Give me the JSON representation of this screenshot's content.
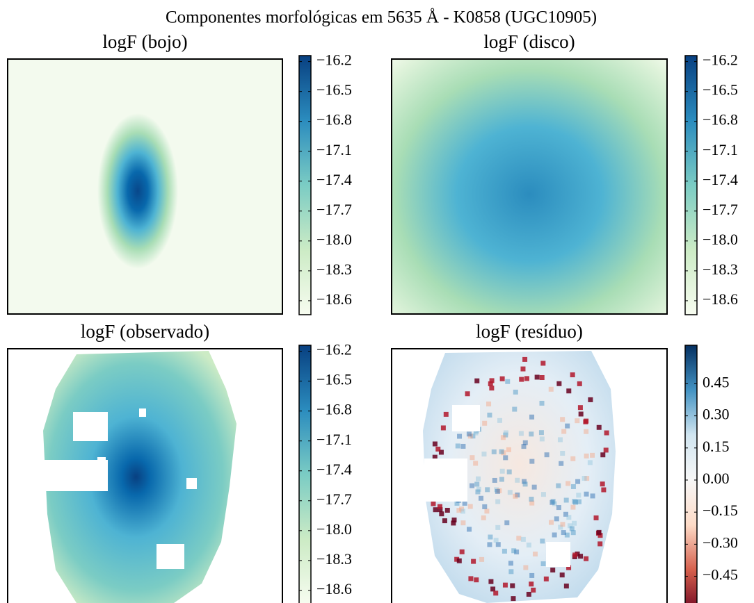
{
  "title": "Componentes morfológicas em 5635 Å - K0858 (UGC10905)",
  "chart_data": [
    {
      "type": "heatmap",
      "title": "logF (bojo)",
      "colormap": [
        "#f7fcf0",
        "#ccebc5",
        "#7bccc4",
        "#2b8cbe",
        "#084081"
      ],
      "clim": [
        -18.74,
        -16.14
      ],
      "ticks": [
        {
          "value": -16.2,
          "label": "−16.2"
        },
        {
          "value": -16.5,
          "label": "−16.5"
        },
        {
          "value": -16.8,
          "label": "−16.8"
        },
        {
          "value": -17.1,
          "label": "−17.1"
        },
        {
          "value": -17.4,
          "label": "−17.4"
        },
        {
          "value": -17.7,
          "label": "−17.7"
        },
        {
          "value": -18.0,
          "label": "−18.0"
        },
        {
          "value": -18.3,
          "label": "−18.3"
        },
        {
          "value": -18.6,
          "label": "−18.6"
        }
      ]
    },
    {
      "type": "heatmap",
      "title": "logF (disco)",
      "colormap": [
        "#f7fcf0",
        "#ccebc5",
        "#7bccc4",
        "#2b8cbe",
        "#084081"
      ],
      "clim": [
        -18.74,
        -16.14
      ],
      "ticks": [
        {
          "value": -16.2,
          "label": "−16.2"
        },
        {
          "value": -16.5,
          "label": "−16.5"
        },
        {
          "value": -16.8,
          "label": "−16.8"
        },
        {
          "value": -17.1,
          "label": "−17.1"
        },
        {
          "value": -17.4,
          "label": "−17.4"
        },
        {
          "value": -17.7,
          "label": "−17.7"
        },
        {
          "value": -18.0,
          "label": "−18.0"
        },
        {
          "value": -18.3,
          "label": "−18.3"
        },
        {
          "value": -18.6,
          "label": "−18.6"
        }
      ]
    },
    {
      "type": "heatmap",
      "title": "logF (observado)",
      "colormap": [
        "#f7fcf0",
        "#ccebc5",
        "#7bccc4",
        "#2b8cbe",
        "#084081"
      ],
      "clim": [
        -18.74,
        -16.14
      ],
      "ticks": [
        {
          "value": -16.2,
          "label": "−16.2"
        },
        {
          "value": -16.5,
          "label": "−16.5"
        },
        {
          "value": -16.8,
          "label": "−16.8"
        },
        {
          "value": -17.1,
          "label": "−17.1"
        },
        {
          "value": -17.4,
          "label": "−17.4"
        },
        {
          "value": -17.7,
          "label": "−17.7"
        },
        {
          "value": -18.0,
          "label": "−18.0"
        },
        {
          "value": -18.3,
          "label": "−18.3"
        },
        {
          "value": -18.6,
          "label": "−18.6"
        }
      ]
    },
    {
      "type": "heatmap",
      "title": "logF (resíduo)",
      "colormap": [
        "#67001f",
        "#d6604d",
        "#fddbc7",
        "#f7f7f7",
        "#d1e5f0",
        "#4393c3",
        "#053061"
      ],
      "clim": [
        -0.63,
        0.63
      ],
      "ticks": [
        0.45,
        {
          "value": 0.3,
          "label": "0.30"
        },
        0.15,
        {
          "value": 0,
          "label": "0.00"
        },
        {
          "value": -0.15,
          "label": "−0.15"
        },
        {
          "value": -0.3,
          "label": "−0.30"
        },
        {
          "value": -0.45,
          "label": "−0.45"
        }
      ]
    }
  ]
}
